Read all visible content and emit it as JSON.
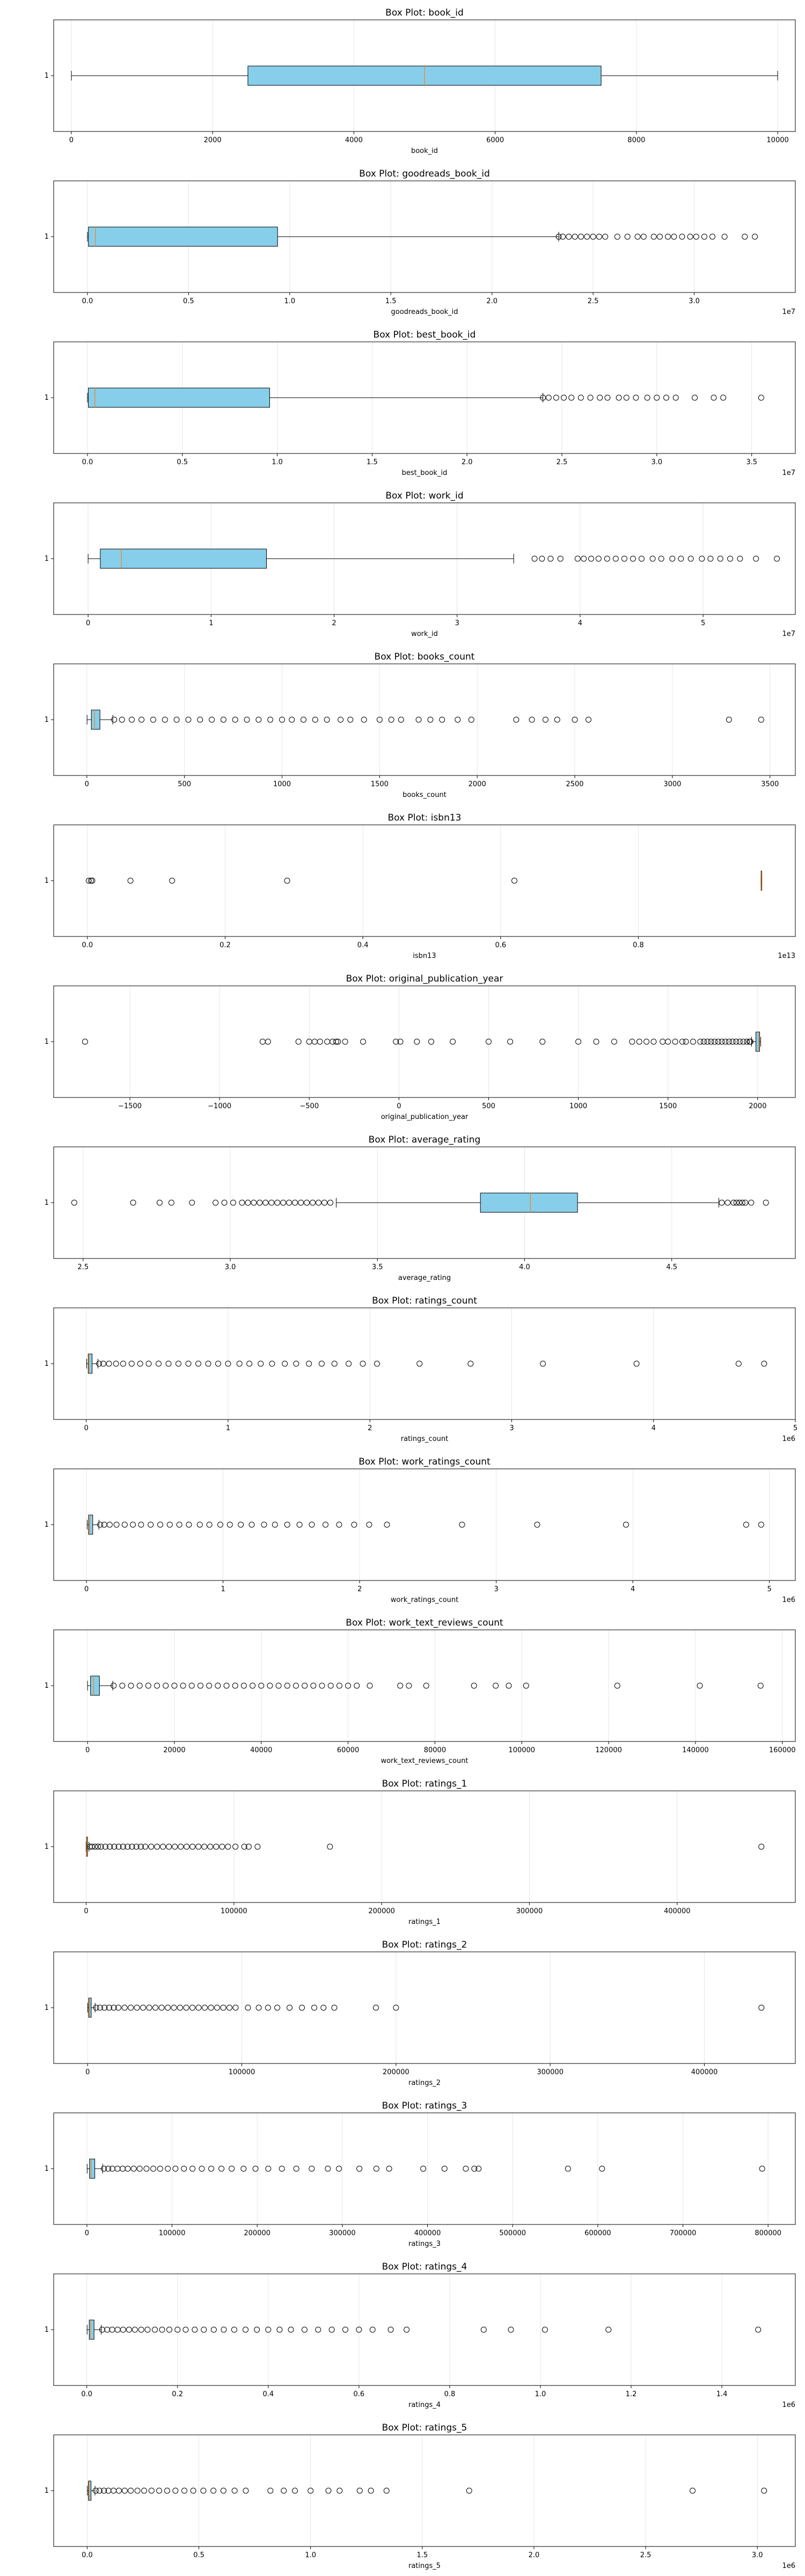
{
  "figure": {
    "background": "#ffffff",
    "box_fill": "#87ceeb",
    "median_color": "#ff7f0e",
    "grid_color": "#e6e6e6"
  },
  "chart_data": [
    {
      "type": "box",
      "orientation": "horizontal",
      "title": "Box Plot: book_id",
      "xlabel": "book_id",
      "category": "1",
      "xlim": [
        -250,
        10250
      ],
      "ticks": [
        0,
        2000,
        4000,
        6000,
        8000,
        10000
      ],
      "tick_labels": [
        "0",
        "2000",
        "4000",
        "6000",
        "8000",
        "10000"
      ],
      "offset_label": "",
      "grid": true,
      "stats": {
        "whislo": 1,
        "q1": 2500,
        "med": 5000,
        "q3": 7500,
        "whishi": 10000
      },
      "outliers": []
    },
    {
      "type": "box",
      "orientation": "horizontal",
      "title": "Box Plot: goodreads_book_id",
      "xlabel": "goodreads_book_id",
      "category": "1",
      "xlim": [
        -1670000,
        35000000
      ],
      "ticks": [
        0,
        5000000,
        10000000,
        15000000,
        20000000,
        25000000,
        30000000
      ],
      "tick_labels": [
        "0.0",
        "0.5",
        "1.0",
        "1.5",
        "2.0",
        "2.5",
        "3.0"
      ],
      "offset_label": "1e7",
      "grid": true,
      "stats": {
        "whislo": 1,
        "q1": 47000,
        "med": 395000,
        "q3": 9400000,
        "whishi": 23300000
      },
      "outliers": [
        23300000,
        23500000,
        23800000,
        24100000,
        24400000,
        24700000,
        25000000,
        25300000,
        25600000,
        26200000,
        26700000,
        27200000,
        27500000,
        28000000,
        28300000,
        28700000,
        29000000,
        29400000,
        29800000,
        30100000,
        30500000,
        30900000,
        31500000,
        32500000,
        33000000
      ]
    },
    {
      "type": "box",
      "orientation": "horizontal",
      "title": "Box Plot: best_book_id",
      "xlabel": "best_book_id",
      "category": "1",
      "xlim": [
        -1780000,
        37300000
      ],
      "ticks": [
        0,
        5000000,
        10000000,
        15000000,
        20000000,
        25000000,
        30000000,
        35000000
      ],
      "tick_labels": [
        "0.0",
        "0.5",
        "1.0",
        "1.5",
        "2.0",
        "2.5",
        "3.0",
        "3.5"
      ],
      "offset_label": "1e7",
      "grid": true,
      "stats": {
        "whislo": 1,
        "q1": 46000,
        "med": 394000,
        "q3": 9600000,
        "whishi": 24000000
      },
      "outliers": [
        24000000,
        24300000,
        24700000,
        25100000,
        25500000,
        26000000,
        26500000,
        27000000,
        27400000,
        28000000,
        28400000,
        28900000,
        29500000,
        30000000,
        30500000,
        31000000,
        32000000,
        33000000,
        33500000,
        35500000
      ]
    },
    {
      "type": "box",
      "orientation": "horizontal",
      "title": "Box Plot: work_id",
      "xlabel": "work_id",
      "category": "1",
      "xlim": [
        -2800000,
        57500000
      ],
      "ticks": [
        0,
        10000000,
        20000000,
        30000000,
        40000000,
        50000000
      ],
      "tick_labels": [
        "0",
        "1",
        "2",
        "3",
        "4",
        "5"
      ],
      "offset_label": "1e7",
      "grid": true,
      "stats": {
        "whislo": 87,
        "q1": 990000,
        "med": 2700000,
        "q3": 14500000,
        "whishi": 34600000
      },
      "outliers": [
        36300000,
        36900000,
        37600000,
        38400000,
        39800000,
        40300000,
        40900000,
        41500000,
        42200000,
        42900000,
        43600000,
        44300000,
        45000000,
        45900000,
        46600000,
        47500000,
        48200000,
        49000000,
        49900000,
        50600000,
        51400000,
        52200000,
        53000000,
        54300000,
        56000000
      ]
    },
    {
      "type": "box",
      "orientation": "horizontal",
      "title": "Box Plot: books_count",
      "xlabel": "books_count",
      "category": "1",
      "xlim": [
        -170,
        3630
      ],
      "ticks": [
        0,
        500,
        1000,
        1500,
        2000,
        2500,
        3000,
        3500
      ],
      "tick_labels": [
        "0",
        "500",
        "1000",
        "1500",
        "2000",
        "2500",
        "3000",
        "3500"
      ],
      "offset_label": "",
      "grid": true,
      "stats": {
        "whislo": 1,
        "q1": 23,
        "med": 40,
        "q3": 67,
        "whishi": 133
      },
      "outliers": [
        140,
        180,
        230,
        280,
        340,
        400,
        460,
        520,
        580,
        640,
        700,
        760,
        820,
        880,
        940,
        1000,
        1050,
        1110,
        1170,
        1230,
        1300,
        1350,
        1420,
        1500,
        1560,
        1610,
        1700,
        1760,
        1820,
        1900,
        1970,
        2200,
        2280,
        2350,
        2410,
        2500,
        2570,
        3290,
        3455
      ]
    },
    {
      "type": "box",
      "orientation": "horizontal",
      "title": "Box Plot: isbn13",
      "xlabel": "isbn13",
      "category": "1",
      "xlim": [
        -490000000000,
        10280000000000
      ],
      "ticks": [
        0,
        2000000000000,
        4000000000000,
        6000000000000,
        8000000000000
      ],
      "tick_labels": [
        "0.0",
        "0.2",
        "0.4",
        "0.6",
        "0.8"
      ],
      "offset_label": "1e13",
      "grid": true,
      "stats": {
        "whislo": 9780000000000,
        "q1": 9780316000000,
        "med": 9780451000000,
        "q3": 9780830000000,
        "whishi": 9790000000000
      },
      "outliers": [
        19500000000,
        52000000000,
        71000000000,
        625000000000,
        1230000000000,
        2900000000000,
        6200000000000
      ]
    },
    {
      "type": "box",
      "orientation": "horizontal",
      "title": "Box Plot: original_publication_year",
      "xlabel": "original_publication_year",
      "category": "1",
      "xlim": [
        -1925,
        2210
      ],
      "ticks": [
        -1500,
        -1000,
        -500,
        0,
        500,
        1000,
        1500,
        2000
      ],
      "tick_labels": [
        "−1500",
        "−1000",
        "−500",
        "0",
        "500",
        "1000",
        "1500",
        "2000"
      ],
      "offset_label": "",
      "grid": true,
      "stats": {
        "whislo": 1966,
        "q1": 1990,
        "med": 2004,
        "q3": 2011,
        "whishi": 2017
      },
      "outliers": [
        -1750,
        -760,
        -730,
        -560,
        -500,
        -470,
        -440,
        -400,
        -370,
        -350,
        -340,
        -300,
        -200,
        -17,
        8,
        100,
        180,
        300,
        500,
        620,
        800,
        1000,
        1100,
        1200,
        1300,
        1340,
        1380,
        1420,
        1470,
        1500,
        1540,
        1580,
        1600,
        1640,
        1680,
        1700,
        1720,
        1740,
        1760,
        1780,
        1800,
        1820,
        1840,
        1860,
        1880,
        1900,
        1920,
        1940,
        1955,
        1960
      ]
    },
    {
      "type": "box",
      "orientation": "horizontal",
      "title": "Box Plot: average_rating",
      "xlabel": "average_rating",
      "category": "1",
      "xlim": [
        2.4,
        4.92
      ],
      "ticks": [
        2.5,
        3.0,
        3.5,
        4.0,
        4.5
      ],
      "tick_labels": [
        "2.5",
        "3.0",
        "3.5",
        "4.0",
        "4.5"
      ],
      "offset_label": "",
      "grid": true,
      "stats": {
        "whislo": 3.36,
        "q1": 3.85,
        "med": 4.02,
        "q3": 4.18,
        "whishi": 4.66
      },
      "outliers": [
        2.47,
        2.67,
        2.76,
        2.8,
        2.87,
        2.95,
        2.98,
        3.01,
        3.04,
        3.06,
        3.08,
        3.1,
        3.12,
        3.14,
        3.16,
        3.18,
        3.2,
        3.22,
        3.24,
        3.26,
        3.28,
        3.3,
        3.32,
        3.34,
        4.67,
        4.69,
        4.71,
        4.72,
        4.73,
        4.74,
        4.75,
        4.77,
        4.82
      ]
    },
    {
      "type": "box",
      "orientation": "horizontal",
      "title": "Box Plot: ratings_count",
      "xlabel": "ratings_count",
      "category": "1",
      "xlim": [
        -230000,
        5000000
      ],
      "ticks": [
        0,
        1000000,
        2000000,
        3000000,
        4000000,
        5000000
      ],
      "tick_labels": [
        "0",
        "1",
        "2",
        "3",
        "4",
        "5"
      ],
      "offset_label": "1e6",
      "grid": true,
      "stats": {
        "whislo": 2716,
        "q1": 13568,
        "med": 21155,
        "q3": 41053,
        "whishi": 82000
      },
      "outliers": [
        90000,
        120000,
        160000,
        210000,
        260000,
        320000,
        380000,
        440000,
        510000,
        580000,
        650000,
        720000,
        790000,
        860000,
        930000,
        1000000,
        1080000,
        1150000,
        1230000,
        1310000,
        1400000,
        1480000,
        1570000,
        1660000,
        1750000,
        1850000,
        1950000,
        2050000,
        2350000,
        2710000,
        3220000,
        3880000,
        4600000,
        4780000
      ]
    },
    {
      "type": "box",
      "orientation": "horizontal",
      "title": "Box Plot: work_ratings_count",
      "xlabel": "work_ratings_count",
      "category": "1",
      "xlim": [
        -240000,
        5190000
      ],
      "ticks": [
        0,
        1000000,
        2000000,
        3000000,
        4000000,
        5000000
      ],
      "tick_labels": [
        "0",
        "1",
        "2",
        "3",
        "4",
        "5"
      ],
      "offset_label": "1e6",
      "grid": true,
      "stats": {
        "whislo": 5510,
        "q1": 15438,
        "med": 23832,
        "q3": 45915,
        "whishi": 91000
      },
      "outliers": [
        100000,
        130000,
        170000,
        220000,
        280000,
        340000,
        400000,
        470000,
        540000,
        610000,
        680000,
        750000,
        830000,
        900000,
        980000,
        1050000,
        1130000,
        1210000,
        1300000,
        1380000,
        1470000,
        1560000,
        1650000,
        1750000,
        1850000,
        1960000,
        2070000,
        2200000,
        2750000,
        3300000,
        3950000,
        4830000,
        4940000
      ]
    },
    {
      "type": "box",
      "orientation": "horizontal",
      "title": "Box Plot: work_text_reviews_count",
      "xlabel": "work_text_reviews_count",
      "category": "1",
      "xlim": [
        -7800,
        163000
      ],
      "ticks": [
        0,
        20000,
        40000,
        60000,
        80000,
        100000,
        120000,
        140000,
        160000
      ],
      "tick_labels": [
        "0",
        "20000",
        "40000",
        "60000",
        "80000",
        "100000",
        "120000",
        "140000",
        "160000"
      ],
      "offset_label": "",
      "grid": true,
      "stats": {
        "whislo": 3,
        "q1": 694,
        "med": 1402,
        "q3": 2744,
        "whishi": 5800
      },
      "outliers": [
        6000,
        8000,
        10000,
        12000,
        14000,
        16000,
        18000,
        20000,
        22000,
        24000,
        26000,
        28000,
        30000,
        32000,
        34000,
        36000,
        38000,
        40000,
        42000,
        44000,
        46000,
        48000,
        50000,
        52000,
        54000,
        56000,
        58000,
        60000,
        62000,
        65000,
        72000,
        74000,
        78000,
        89000,
        94000,
        97000,
        101000,
        122000,
        141000,
        155000
      ]
    },
    {
      "type": "box",
      "orientation": "horizontal",
      "title": "Box Plot: ratings_1",
      "xlabel": "ratings_1",
      "category": "1",
      "xlim": [
        -22000,
        480000
      ],
      "ticks": [
        0,
        100000,
        200000,
        300000,
        400000
      ],
      "tick_labels": [
        "0",
        "100000",
        "200000",
        "300000",
        "400000"
      ],
      "offset_label": "",
      "grid": true,
      "stats": {
        "whislo": 11,
        "q1": 196,
        "med": 391,
        "q3": 885,
        "whishi": 1900
      },
      "outliers": [
        2500,
        4000,
        6000,
        8000,
        10000,
        13000,
        16000,
        19000,
        22000,
        25000,
        28000,
        31000,
        34000,
        37000,
        40000,
        44000,
        48000,
        52000,
        56000,
        60000,
        64000,
        68000,
        72000,
        76000,
        80000,
        84000,
        88000,
        92000,
        96000,
        101000,
        107000,
        110000,
        116000,
        165000,
        457000
      ]
    },
    {
      "type": "box",
      "orientation": "horizontal",
      "title": "Box Plot: ratings_2",
      "xlabel": "ratings_2",
      "category": "1",
      "xlim": [
        -22000,
        459000
      ],
      "ticks": [
        0,
        100000,
        200000,
        300000,
        400000
      ],
      "tick_labels": [
        "0",
        "100000",
        "200000",
        "300000",
        "400000"
      ],
      "offset_label": "",
      "grid": true,
      "stats": {
        "whislo": 30,
        "q1": 656,
        "med": 1163,
        "q3": 2353,
        "whishi": 4900
      },
      "outliers": [
        5500,
        8000,
        11000,
        14000,
        17000,
        20000,
        24000,
        28000,
        32000,
        36000,
        40000,
        44000,
        48000,
        52000,
        56000,
        60000,
        64000,
        68000,
        72000,
        76000,
        80000,
        84000,
        88000,
        92000,
        96000,
        104000,
        111000,
        117000,
        123000,
        131000,
        139000,
        147000,
        153000,
        160000,
        187000,
        200000,
        437000
      ]
    },
    {
      "type": "box",
      "orientation": "horizontal",
      "title": "Box Plot: ratings_3",
      "xlabel": "ratings_3",
      "category": "1",
      "xlim": [
        -39000,
        832000
      ],
      "ticks": [
        0,
        100000,
        200000,
        300000,
        400000,
        500000,
        600000,
        700000,
        800000
      ],
      "tick_labels": [
        "0",
        "100000",
        "200000",
        "300000",
        "400000",
        "500000",
        "600000",
        "700000",
        "800000"
      ],
      "offset_label": "",
      "grid": true,
      "stats": {
        "whislo": 323,
        "q1": 3112,
        "med": 4894,
        "q3": 9287,
        "whishi": 18500
      },
      "outliers": [
        20000,
        25000,
        30000,
        36000,
        42000,
        48000,
        55000,
        62000,
        70000,
        78000,
        86000,
        95000,
        104000,
        114000,
        124000,
        135000,
        146000,
        158000,
        170000,
        184000,
        198000,
        213000,
        229000,
        246000,
        264000,
        283000,
        296000,
        320000,
        340000,
        355000,
        395000,
        420000,
        445000,
        455000,
        460000,
        565000,
        605000,
        793000
      ]
    },
    {
      "type": "box",
      "orientation": "horizontal",
      "title": "Box Plot: ratings_4",
      "xlabel": "ratings_4",
      "category": "1",
      "xlim": [
        -73000,
        1562000
      ],
      "ticks": [
        0,
        200000,
        400000,
        600000,
        800000,
        1000000,
        1200000,
        1400000
      ],
      "tick_labels": [
        "0.0",
        "0.2",
        "0.4",
        "0.6",
        "0.8",
        "1.0",
        "1.2",
        "1.4"
      ],
      "offset_label": "1e6",
      "grid": true,
      "stats": {
        "whislo": 750,
        "q1": 5406,
        "med": 8269,
        "q3": 16023,
        "whishi": 31900
      },
      "outliers": [
        34000,
        45000,
        56000,
        68000,
        80000,
        93000,
        106000,
        120000,
        134000,
        150000,
        166000,
        182000,
        200000,
        218000,
        238000,
        258000,
        280000,
        302000,
        325000,
        350000,
        375000,
        400000,
        425000,
        450000,
        480000,
        510000,
        540000,
        570000,
        600000,
        630000,
        670000,
        705000,
        875000,
        935000,
        1010000,
        1150000,
        1480000
      ]
    },
    {
      "type": "box",
      "orientation": "horizontal",
      "title": "Box Plot: ratings_5",
      "xlabel": "ratings_5",
      "category": "1",
      "xlim": [
        -150000,
        3170000
      ],
      "ticks": [
        0,
        500000,
        1000000,
        1500000,
        2000000,
        2500000,
        3000000
      ],
      "tick_labels": [
        "0.0",
        "0.5",
        "1.0",
        "1.5",
        "2.0",
        "2.5",
        "3.0"
      ],
      "offset_label": "1e6",
      "grid": true,
      "stats": {
        "whislo": 754,
        "q1": 5334,
        "med": 8836,
        "q3": 17305,
        "whishi": 35000
      },
      "outliers": [
        38000,
        55000,
        75000,
        95000,
        118000,
        142000,
        168000,
        195000,
        225000,
        255000,
        288000,
        322000,
        358000,
        395000,
        435000,
        475000,
        520000,
        565000,
        610000,
        660000,
        710000,
        820000,
        880000,
        930000,
        1000000,
        1080000,
        1130000,
        1220000,
        1270000,
        1340000,
        1710000,
        2710000,
        3030000
      ]
    }
  ]
}
